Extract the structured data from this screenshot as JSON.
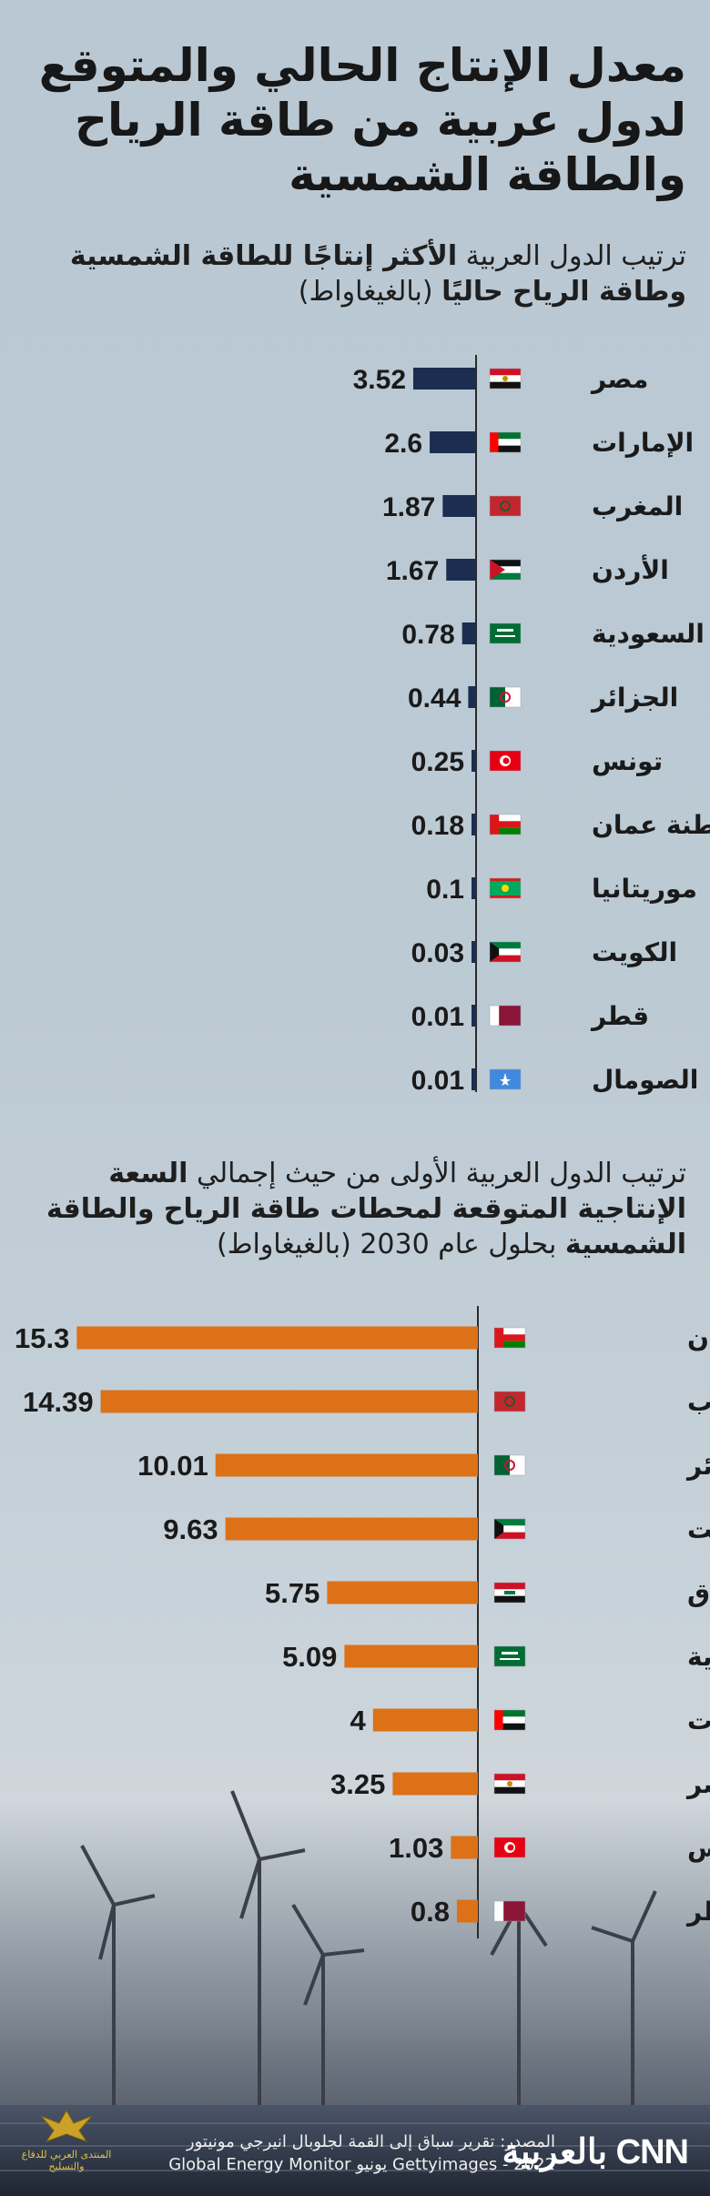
{
  "title": "معدل الإنتاج الحالي والمتوقع لدول عربية من طاقة الرياح والطاقة الشمسية",
  "colors": {
    "current": "#1b2d51",
    "projected": "#dc7117",
    "axis": "#2a2a2a"
  },
  "chart_data": [
    {
      "type": "bar",
      "title_parts": [
        "ترتيب الدول العربية ",
        "الأكثر إنتاجًا للطاقة الشمسية وطاقة الرياح حاليًا",
        " (بالغيغاواط)"
      ],
      "categories": [
        "مصر",
        "الإمارات",
        "المغرب",
        "الأردن",
        "السعودية",
        "الجزائر",
        "تونس",
        "سلطنة عمان",
        "موريتانيا",
        "الكويت",
        "قطر",
        "الصومال"
      ],
      "labels": [
        "3.52",
        "2.6",
        "1.87",
        "1.67",
        "0.78",
        "0.44",
        "0.25",
        "0.18",
        "0.1",
        "0.03",
        "0.01",
        "0.01"
      ],
      "values": [
        3.52,
        2.6,
        1.87,
        1.67,
        0.78,
        0.44,
        0.25,
        0.18,
        0.1,
        0.03,
        0.01,
        0.01
      ],
      "flags": [
        "egypt",
        "uae",
        "morocco",
        "jordan",
        "saudi",
        "algeria",
        "tunisia",
        "oman",
        "mauritania",
        "kuwait",
        "qatar",
        "somalia"
      ]
    },
    {
      "type": "bar",
      "title_parts": [
        "ترتيب الدول العربية الأولى من حيث إجمالي ",
        "السعة الإنتاجية المتوقعة لمحطات طاقة الرياح والطاقة الشمسية",
        " بحلول عام 2030 (بالغيغاواط)"
      ],
      "categories": [
        "سلطنة عمان",
        "المغرب",
        "الجزائر",
        "الكويت",
        "العراق",
        "السعودية",
        "الإمارات",
        "مصر",
        "تونس",
        "قطر"
      ],
      "labels": [
        "15.3",
        "14.39",
        "10.01",
        "9.63",
        "5.75",
        "5.09",
        "4",
        "3.25",
        "1.03",
        "0.8"
      ],
      "values": [
        15.3,
        14.39,
        10.01,
        9.63,
        5.75,
        5.09,
        4,
        3.25,
        1.03,
        0.8
      ],
      "flags": [
        "oman",
        "morocco",
        "algeria",
        "kuwait",
        "iraq",
        "saudi",
        "uae",
        "egypt",
        "tunisia",
        "qatar"
      ]
    }
  ],
  "footer": {
    "source_line1": "المصدر: تقرير سباق إلى القمة لجلوبال انيرجي مونيتور",
    "source_line2": "Gettyimages - 2022 يونيو  Global Energy Monitor",
    "logo": "CNN بالعربية",
    "watermark": "المنتدى العربي للدفاع والتسليح"
  }
}
